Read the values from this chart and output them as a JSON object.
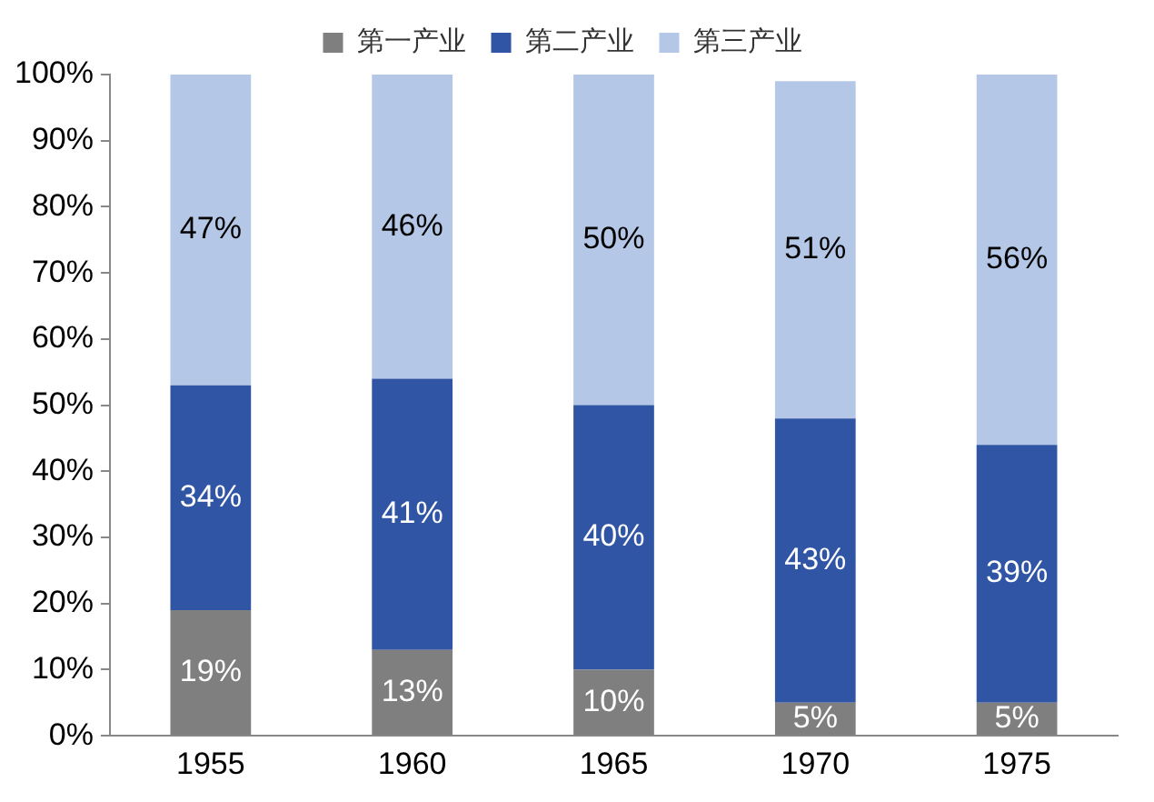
{
  "chart_data": {
    "type": "bar",
    "stacked": true,
    "categories": [
      "1955",
      "1960",
      "1965",
      "1970",
      "1975"
    ],
    "series": [
      {
        "name": "第一产业",
        "color": "#7f7f7f",
        "values": [
          19,
          13,
          10,
          5,
          5
        ],
        "value_labels": [
          "19%",
          "13%",
          "10%",
          "5%",
          "5%"
        ]
      },
      {
        "name": "第二产业",
        "color": "#2f55a4",
        "values": [
          34,
          41,
          40,
          43,
          39
        ],
        "value_labels": [
          "34%",
          "41%",
          "40%",
          "43%",
          "39%"
        ]
      },
      {
        "name": "第三产业",
        "color": "#b4c7e7",
        "values": [
          47,
          46,
          50,
          51,
          56
        ],
        "value_labels": [
          "47%",
          "46%",
          "50%",
          "51%",
          "56%"
        ]
      }
    ],
    "ylim": [
      0,
      100
    ],
    "yticks": [
      {
        "value": 0,
        "label": "0%"
      },
      {
        "value": 10,
        "label": "10%"
      },
      {
        "value": 20,
        "label": "20%"
      },
      {
        "value": 30,
        "label": "30%"
      },
      {
        "value": 40,
        "label": "40%"
      },
      {
        "value": 50,
        "label": "50%"
      },
      {
        "value": 60,
        "label": "60%"
      },
      {
        "value": 70,
        "label": "70%"
      },
      {
        "value": 80,
        "label": "80%"
      },
      {
        "value": 90,
        "label": "90%"
      },
      {
        "value": 100,
        "label": "100%"
      }
    ],
    "grid": false,
    "legend": "top"
  }
}
